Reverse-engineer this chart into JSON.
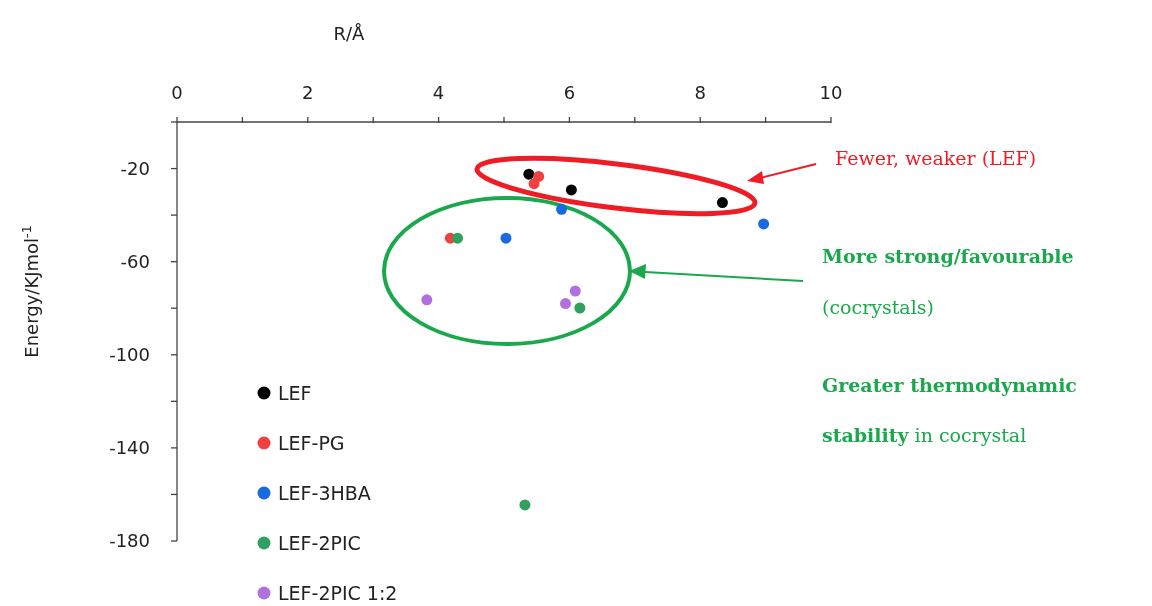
{
  "chart_data": {
    "type": "scatter",
    "xlabel": "R/Å",
    "ylabel": "Energy/KJmol$^{-1}$",
    "xlim": [
      0,
      10
    ],
    "xticks": [
      0,
      {
        "value": 1,
        "label": null
      },
      2,
      {
        "value": 3,
        "label": null
      },
      4,
      {
        "value": 5,
        "label": null
      },
      6,
      {
        "value": 7,
        "label": null
      },
      8,
      {
        "value": 9,
        "label": null
      },
      10
    ],
    "ylim": [
      -180,
      0
    ],
    "yticks": [
      {
        "value": -180,
        "label": "-180"
      },
      {
        "value": -160,
        "label": null
      },
      {
        "value": -140,
        "label": "-140"
      },
      {
        "value": -120,
        "label": null
      },
      {
        "value": -100,
        "label": "-100"
      },
      {
        "value": -80,
        "label": null
      },
      {
        "value": -60,
        "label": "-60"
      },
      {
        "value": -40,
        "label": null
      },
      {
        "value": -20,
        "label": "-20"
      },
      {
        "value": 0,
        "label": null
      }
    ],
    "grid": false,
    "legend": "bottom left",
    "marker": "circle",
    "series": [
      {
        "name": "LEF",
        "color": "#000000",
        "x": [
          5.38,
          6.03,
          8.34
        ],
        "values": [
          -22.4,
          -29.2,
          -34.6
        ]
      },
      {
        "name": "LEF-PG",
        "color": "#f04040",
        "x": [
          5.53,
          5.46,
          4.18
        ],
        "values": [
          -23.4,
          -26.5,
          -49.9
        ]
      },
      {
        "name": "LEF-3HBA",
        "color": "#1a6ae0",
        "x": [
          5.88,
          5.03,
          8.97
        ],
        "values": [
          -37.5,
          -49.9,
          -43.8
        ]
      },
      {
        "name": "LEF-2PIC",
        "color": "#30a060",
        "x": [
          4.29,
          6.16,
          5.32
        ],
        "values": [
          -49.9,
          -79.9,
          -164.5
        ]
      },
      {
        "name": "LEF-2PIC 1:2",
        "color": "#b070e0",
        "x": [
          3.82,
          5.94,
          6.09
        ],
        "values": [
          -76.4,
          -78.0,
          -72.6
        ]
      }
    ],
    "annotations": [
      "Fewer, weaker (LEF)",
      "More strong/favourable",
      "(cocrystals)",
      "Greater thermodynamic",
      "stability",
      "in cocrystal"
    ]
  }
}
